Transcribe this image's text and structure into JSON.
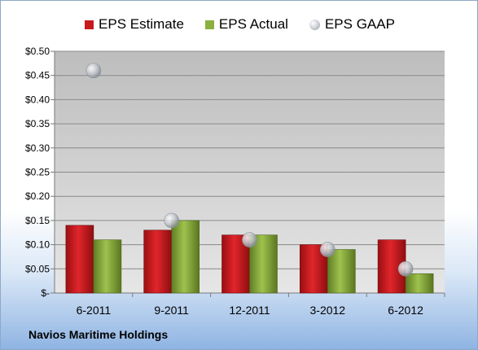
{
  "chart_data": {
    "type": "bar",
    "title": "",
    "xlabel": "",
    "ylabel": "",
    "categories": [
      "6-2011",
      "9-2011",
      "12-2011",
      "3-2012",
      "6-2012"
    ],
    "series": [
      {
        "name": "EPS Estimate",
        "kind": "bar",
        "color": "#c8191e",
        "values": [
          0.14,
          0.13,
          0.12,
          0.1,
          0.11
        ]
      },
      {
        "name": "EPS Actual",
        "kind": "bar",
        "color": "#8bb03f",
        "values": [
          0.11,
          0.15,
          0.12,
          0.09,
          0.04
        ]
      },
      {
        "name": "EPS GAAP",
        "kind": "scatter",
        "color": "#b8bcc2",
        "values": [
          0.46,
          0.15,
          0.11,
          0.09,
          0.05
        ]
      }
    ],
    "ylim": [
      0,
      0.5
    ],
    "yticks": [
      0,
      0.05,
      0.1,
      0.15,
      0.2,
      0.25,
      0.3,
      0.35,
      0.4,
      0.45,
      0.5
    ],
    "ytick_labels": [
      "$-",
      "$0.05",
      "$0.10",
      "$0.15",
      "$0.20",
      "$0.25",
      "$0.30",
      "$0.35",
      "$0.40",
      "$0.45",
      "$0.50"
    ],
    "grid": true,
    "legend_position": "top"
  },
  "footer": {
    "company": "Navios Maritime Holdings"
  }
}
